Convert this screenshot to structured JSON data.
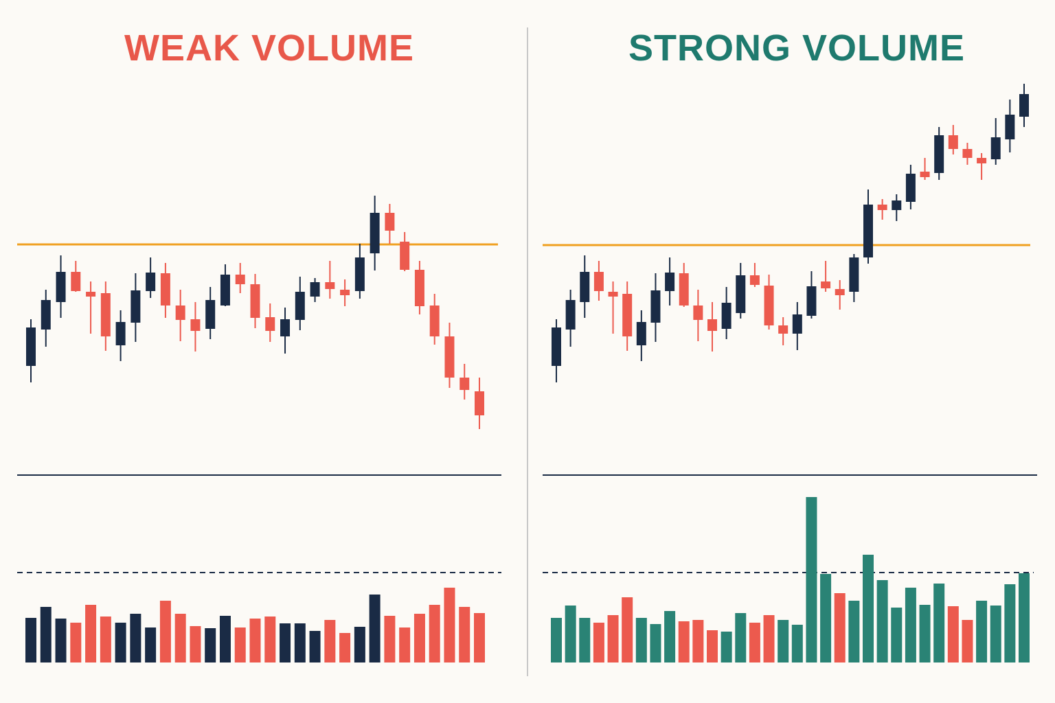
{
  "chart_data": [
    {
      "type": "candlestick",
      "title": "WEAK VOLUME",
      "title_color": "#e8584a",
      "up_color": "#1a2b45",
      "down_color": "#ec5a4e",
      "level_color": "#f0a020",
      "ylim": [
        334,
        924
      ],
      "volume_lim": [
        0,
        265
      ],
      "resistance": 668,
      "average_volume": 131,
      "open": [
        491,
        544,
        584,
        628,
        599,
        597,
        521,
        554,
        600,
        626,
        579,
        559,
        545,
        579,
        624,
        610,
        562,
        534,
        558,
        592,
        613,
        602,
        600,
        655,
        714,
        672,
        631,
        579,
        534,
        474,
        454
      ],
      "high": [
        559,
        602,
        652,
        644,
        614,
        614,
        572,
        626,
        649,
        641,
        602,
        584,
        606,
        639,
        641,
        625,
        582,
        576,
        621,
        619,
        644,
        617,
        669,
        739,
        727,
        686,
        644,
        596,
        554,
        494,
        474
      ],
      "low": [
        467,
        519,
        561,
        599,
        538,
        513,
        498,
        526,
        590,
        561,
        527,
        512,
        530,
        578,
        597,
        546,
        526,
        509,
        543,
        584,
        589,
        578,
        589,
        630,
        669,
        629,
        566,
        522,
        459,
        442,
        399
      ],
      "close": [
        547,
        587,
        628,
        600,
        592,
        534,
        555,
        601,
        627,
        579,
        558,
        542,
        587,
        624,
        610,
        561,
        542,
        559,
        599,
        613,
        603,
        594,
        649,
        714,
        688,
        631,
        578,
        534,
        474,
        456,
        419
      ],
      "volume": [
        65,
        81,
        64,
        58,
        84,
        67,
        58,
        71,
        51,
        90,
        71,
        53,
        50,
        68,
        51,
        64,
        67,
        57,
        57,
        46,
        62,
        43,
        52,
        99,
        68,
        51,
        71,
        84,
        109,
        81,
        72
      ],
      "volume_colors": [
        "#1a2b45",
        "#1a2b45",
        "#1a2b45",
        "#ec5a4e",
        "#ec5a4e",
        "#ec5a4e",
        "#1a2b45",
        "#1a2b45",
        "#1a2b45",
        "#ec5a4e",
        "#ec5a4e",
        "#ec5a4e",
        "#1a2b45",
        "#1a2b45",
        "#ec5a4e",
        "#ec5a4e",
        "#ec5a4e",
        "#1a2b45",
        "#1a2b45",
        "#1a2b45",
        "#ec5a4e",
        "#ec5a4e",
        "#1a2b45",
        "#1a2b45",
        "#ec5a4e",
        "#ec5a4e",
        "#ec5a4e",
        "#ec5a4e",
        "#ec5a4e",
        "#ec5a4e",
        "#ec5a4e"
      ]
    },
    {
      "type": "candlestick",
      "title": "STRONG VOLUME",
      "title_color": "#1f7a6e",
      "up_color": "#1a2b45",
      "down_color": "#ec5a4e",
      "level_color": "#f0a020",
      "ylim": [
        334,
        924
      ],
      "volume_lim": [
        0,
        265
      ],
      "resistance": 667,
      "average_volume": 131,
      "open": [
        491,
        544,
        584,
        628,
        599,
        596,
        521,
        554,
        600,
        626,
        579,
        559,
        545,
        568,
        623,
        608,
        550,
        538,
        564,
        614,
        603,
        599,
        649,
        726,
        718,
        730,
        774,
        772,
        827,
        807,
        794,
        792,
        821,
        854
      ],
      "high": [
        559,
        602,
        652,
        644,
        614,
        614,
        572,
        626,
        649,
        641,
        602,
        584,
        606,
        641,
        641,
        624,
        562,
        584,
        629,
        644,
        616,
        654,
        748,
        734,
        741,
        784,
        794,
        839,
        842,
        816,
        801,
        852,
        879,
        902
      ],
      "low": [
        467,
        519,
        561,
        586,
        538,
        513,
        498,
        526,
        579,
        577,
        527,
        512,
        530,
        560,
        606,
        544,
        521,
        514,
        560,
        599,
        573,
        584,
        640,
        704,
        702,
        719,
        762,
        762,
        799,
        784,
        762,
        784,
        802,
        839
      ],
      "close": [
        547,
        587,
        628,
        600,
        592,
        534,
        555,
        601,
        627,
        579,
        558,
        542,
        583,
        623,
        609,
        550,
        538,
        566,
        607,
        604,
        594,
        649,
        726,
        718,
        732,
        771,
        766,
        827,
        807,
        794,
        786,
        824,
        857,
        887
      ],
      "volume": [
        65,
        83,
        65,
        58,
        69,
        95,
        65,
        56,
        75,
        60,
        62,
        47,
        45,
        72,
        58,
        69,
        62,
        55,
        241,
        129,
        101,
        90,
        157,
        120,
        80,
        109,
        84,
        115,
        82,
        62,
        90,
        83,
        114,
        130
      ],
      "volume_colors": [
        "#2a8375",
        "#2a8375",
        "#2a8375",
        "#ec5a4e",
        "#ec5a4e",
        "#ec5a4e",
        "#2a8375",
        "#2a8375",
        "#2a8375",
        "#ec5a4e",
        "#ec5a4e",
        "#ec5a4e",
        "#2a8375",
        "#2a8375",
        "#ec5a4e",
        "#ec5a4e",
        "#2a8375",
        "#2a8375",
        "#2a8375",
        "#2a8375",
        "#ec5a4e",
        "#2a8375",
        "#2a8375",
        "#2a8375",
        "#2a8375",
        "#2a8375",
        "#2a8375",
        "#2a8375",
        "#ec5a4e",
        "#ec5a4e",
        "#2a8375",
        "#2a8375",
        "#2a8375",
        "#2a8375"
      ]
    }
  ]
}
